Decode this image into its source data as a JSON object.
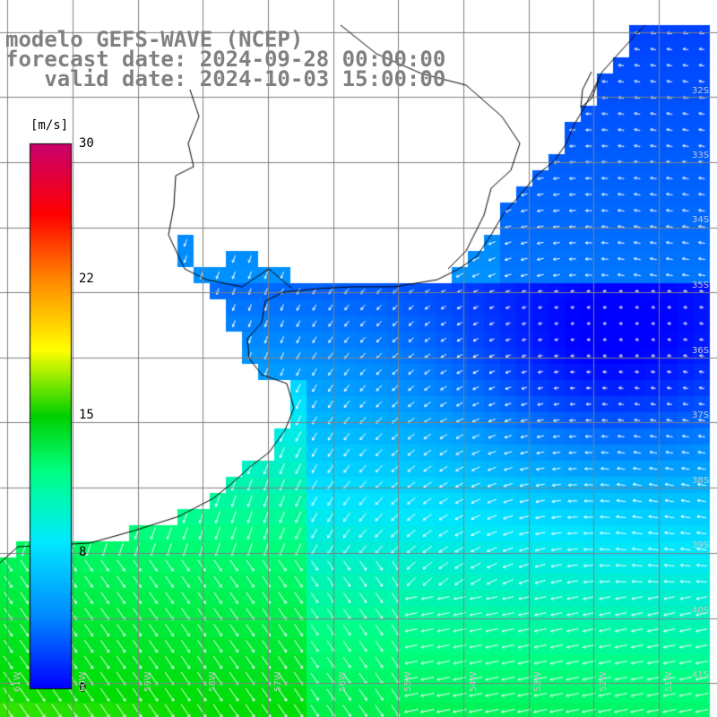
{
  "title": {
    "line1": "modelo GEFS-WAVE (NCEP)",
    "line2": "forecast date: 2024-09-28 00:00:00",
    "line3": "   valid date: 2024-10-03 15:00:00"
  },
  "colorbar": {
    "unit": "[m/s]",
    "ticks": [
      "30",
      "22",
      "15",
      "8",
      "0"
    ],
    "colors": [
      "#0000ff",
      "#00aaff",
      "#00ffff",
      "#00ff00",
      "#ffff00",
      "#ff8800",
      "#ff0000",
      "#c8006e"
    ]
  },
  "map": {
    "lat_labels": [
      "32S",
      "33S",
      "34S",
      "35S",
      "36S",
      "37S",
      "38S",
      "39S",
      "40S",
      "41S"
    ],
    "lon_labels": [
      "61W",
      "60W",
      "59W",
      "58W",
      "57W",
      "56W",
      "55W",
      "54W",
      "53W",
      "52W",
      "51W"
    ],
    "land_color": "#ffffff",
    "grid_color": "#808080",
    "coast_color": "#000000",
    "arrow_color": "#ffffff"
  }
}
